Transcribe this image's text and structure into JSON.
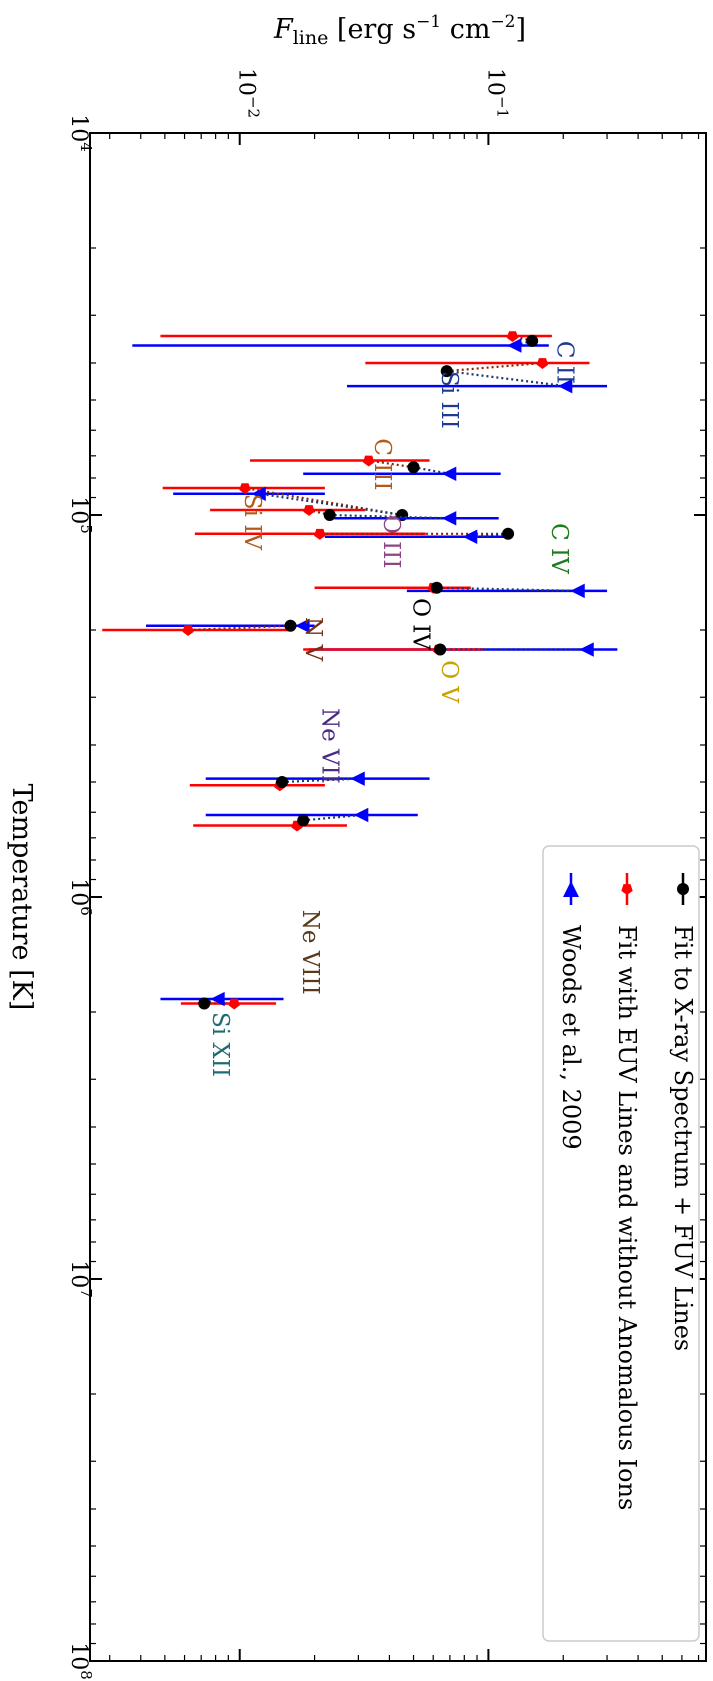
{
  "chart_data": {
    "type": "scatter",
    "orientation": "rotated-90-clockwise",
    "x_axis": {
      "label": "Temperature [K]",
      "scale": "log",
      "range": [
        10000,
        100000000
      ],
      "tick_labels": [
        {
          "value": 10000,
          "base": "10",
          "exp": "4"
        },
        {
          "value": 100000,
          "base": "10",
          "exp": "5"
        },
        {
          "value": 1000000,
          "base": "10",
          "exp": "6"
        },
        {
          "value": 10000000,
          "base": "10",
          "exp": "7"
        },
        {
          "value": 100000000,
          "base": "10",
          "exp": "8"
        }
      ]
    },
    "y_axis": {
      "label_main": "F",
      "label_sub": "line",
      "label_rest": " [erg s",
      "label_exp1": "−1",
      "label_mid": " cm",
      "label_exp2": "−2",
      "label_end": "]",
      "scale": "log",
      "range": [
        0.0025,
        0.75
      ],
      "tick_labels": [
        {
          "value": 0.01,
          "base": "10",
          "exp": "−2"
        },
        {
          "value": 0.1,
          "base": "10",
          "exp": "−1"
        }
      ]
    },
    "series": [
      {
        "name": "Fit to X-ray Spectrum + FUV Lines",
        "color": "#000000",
        "marker": "circle"
      },
      {
        "name": "Fit with EUV Lines and without Anomalous Ions",
        "color": "#ff0000",
        "marker": "pentagon"
      },
      {
        "name": "Woods et al., 2009",
        "color": "#0000ff",
        "marker": "triangle"
      }
    ],
    "ions": [
      {
        "name": "C II",
        "color": "#1f3a93",
        "label_T": 35000,
        "label_F": 0.19,
        "black": {
          "T": 35000,
          "F": 0.15
        },
        "red": {
          "T": 34000,
          "F": 0.125,
          "lo": 0.0048,
          "hi": 0.18
        },
        "blue": {
          "T": 36000,
          "F": 0.128,
          "lo": 0.0037,
          "hi": 0.175
        }
      },
      {
        "name": "Si III",
        "color": "#1f3a93",
        "label_T": 42000,
        "label_F": 0.065,
        "black": {
          "T": 42000,
          "F": 0.068
        },
        "red": {
          "T": 40000,
          "F": 0.165,
          "lo": 0.032,
          "hi": 0.255
        },
        "blue": {
          "T": 46000,
          "F": 0.205,
          "lo": 0.027,
          "hi": 0.3
        }
      },
      {
        "name": "C III",
        "color": "#b25a1a",
        "label_T": 63000,
        "label_F": 0.035,
        "black": {
          "T": 75000,
          "F": 0.05
        },
        "red": {
          "T": 72000,
          "F": 0.033,
          "lo": 0.011,
          "hi": 0.058
        },
        "blue": {
          "T": 78000,
          "F": 0.07,
          "lo": 0.018,
          "hi": 0.112
        }
      },
      {
        "name": "Si IV",
        "color": "#b25a1a",
        "label_T": 88000,
        "label_F": 0.0105,
        "black": {
          "T": 100000,
          "F": 0.045
        },
        "red": {
          "T": 85000,
          "F": 0.0105,
          "lo": 0.0049,
          "hi": 0.022
        },
        "blue": {
          "T": 88000,
          "F": 0.012,
          "lo": 0.0054,
          "hi": 0.022
        }
      },
      {
        "name": "O III",
        "color": "#8e4585",
        "label_T": 100000,
        "label_F": 0.038,
        "black": {
          "T": 100000,
          "F": 0.023
        },
        "red": {
          "T": 97000,
          "F": 0.019,
          "lo": 0.0076,
          "hi": 0.032
        },
        "blue": {
          "T": 102000,
          "F": 0.07,
          "lo": 0.024,
          "hi": 0.11
        }
      },
      {
        "name": "C IV",
        "color": "#1e7b1e",
        "label_T": 105000,
        "label_F": 0.18,
        "black": {
          "T": 112000,
          "F": 0.12
        },
        "red": {
          "T": 112000,
          "F": 0.021,
          "lo": 0.0066,
          "hi": 0.056
        },
        "blue": {
          "T": 114000,
          "F": 0.085,
          "lo": 0.022,
          "hi": 0.12
        }
      },
      {
        "name": "O IV",
        "color": "#000000",
        "label_T": 165000,
        "label_F": 0.05,
        "black": {
          "T": 155000,
          "F": 0.062
        },
        "red": {
          "T": 155000,
          "F": 0.06,
          "lo": 0.02,
          "hi": 0.085
        },
        "blue": {
          "T": 158000,
          "F": 0.23,
          "lo": 0.047,
          "hi": 0.3
        }
      },
      {
        "name": "N V",
        "color": "#7a2d1a",
        "label_T": 185000,
        "label_F": 0.0185,
        "black": {
          "T": 195000,
          "F": 0.016
        },
        "red": {
          "T": 200000,
          "F": 0.0062,
          "lo": 0.0028,
          "hi": 0.016
        },
        "blue": {
          "T": 195000,
          "F": 0.018,
          "lo": 0.0042,
          "hi": 0.02
        }
      },
      {
        "name": "O V",
        "color": "#c9a100",
        "label_T": 240000,
        "label_F": 0.065,
        "black": {
          "T": 225000,
          "F": 0.064
        },
        "red": {
          "T": 225000,
          "F": 0.063,
          "lo": 0.018,
          "hi": 0.095
        },
        "blue": {
          "T": 225000,
          "F": 0.25,
          "lo": 0.019,
          "hi": 0.33
        }
      },
      {
        "name": "Ne VII",
        "color": "#4b2a80",
        "label_T": 320000,
        "label_F": 0.0215,
        "black": {
          "T": 500000,
          "F": 0.0148
        },
        "red": {
          "T": 510000,
          "F": 0.0145,
          "lo": 0.0063,
          "hi": 0.022
        },
        "blue": {
          "T": 490000,
          "F": 0.03,
          "lo": 0.0073,
          "hi": 0.058
        }
      },
      {
        "name": "Ne VIII",
        "color": "#5a3a1a",
        "label_T": 1080000,
        "label_F": 0.018,
        "black": {
          "T": 630000,
          "F": 0.018
        },
        "red": {
          "T": 650000,
          "F": 0.017,
          "lo": 0.0065,
          "hi": 0.027
        },
        "blue": {
          "T": 610000,
          "F": 0.031,
          "lo": 0.0073,
          "hi": 0.052
        }
      },
      {
        "name": "Si XII",
        "color": "#1f6b73",
        "label_T": 2000000,
        "label_F": 0.0078,
        "black": {
          "T": 1900000,
          "F": 0.0072
        },
        "red": {
          "T": 1900000,
          "F": 0.0095,
          "lo": 0.0058,
          "hi": 0.014
        },
        "blue": {
          "T": 1850000,
          "F": 0.0082,
          "lo": 0.0048,
          "hi": 0.015
        }
      }
    ]
  }
}
